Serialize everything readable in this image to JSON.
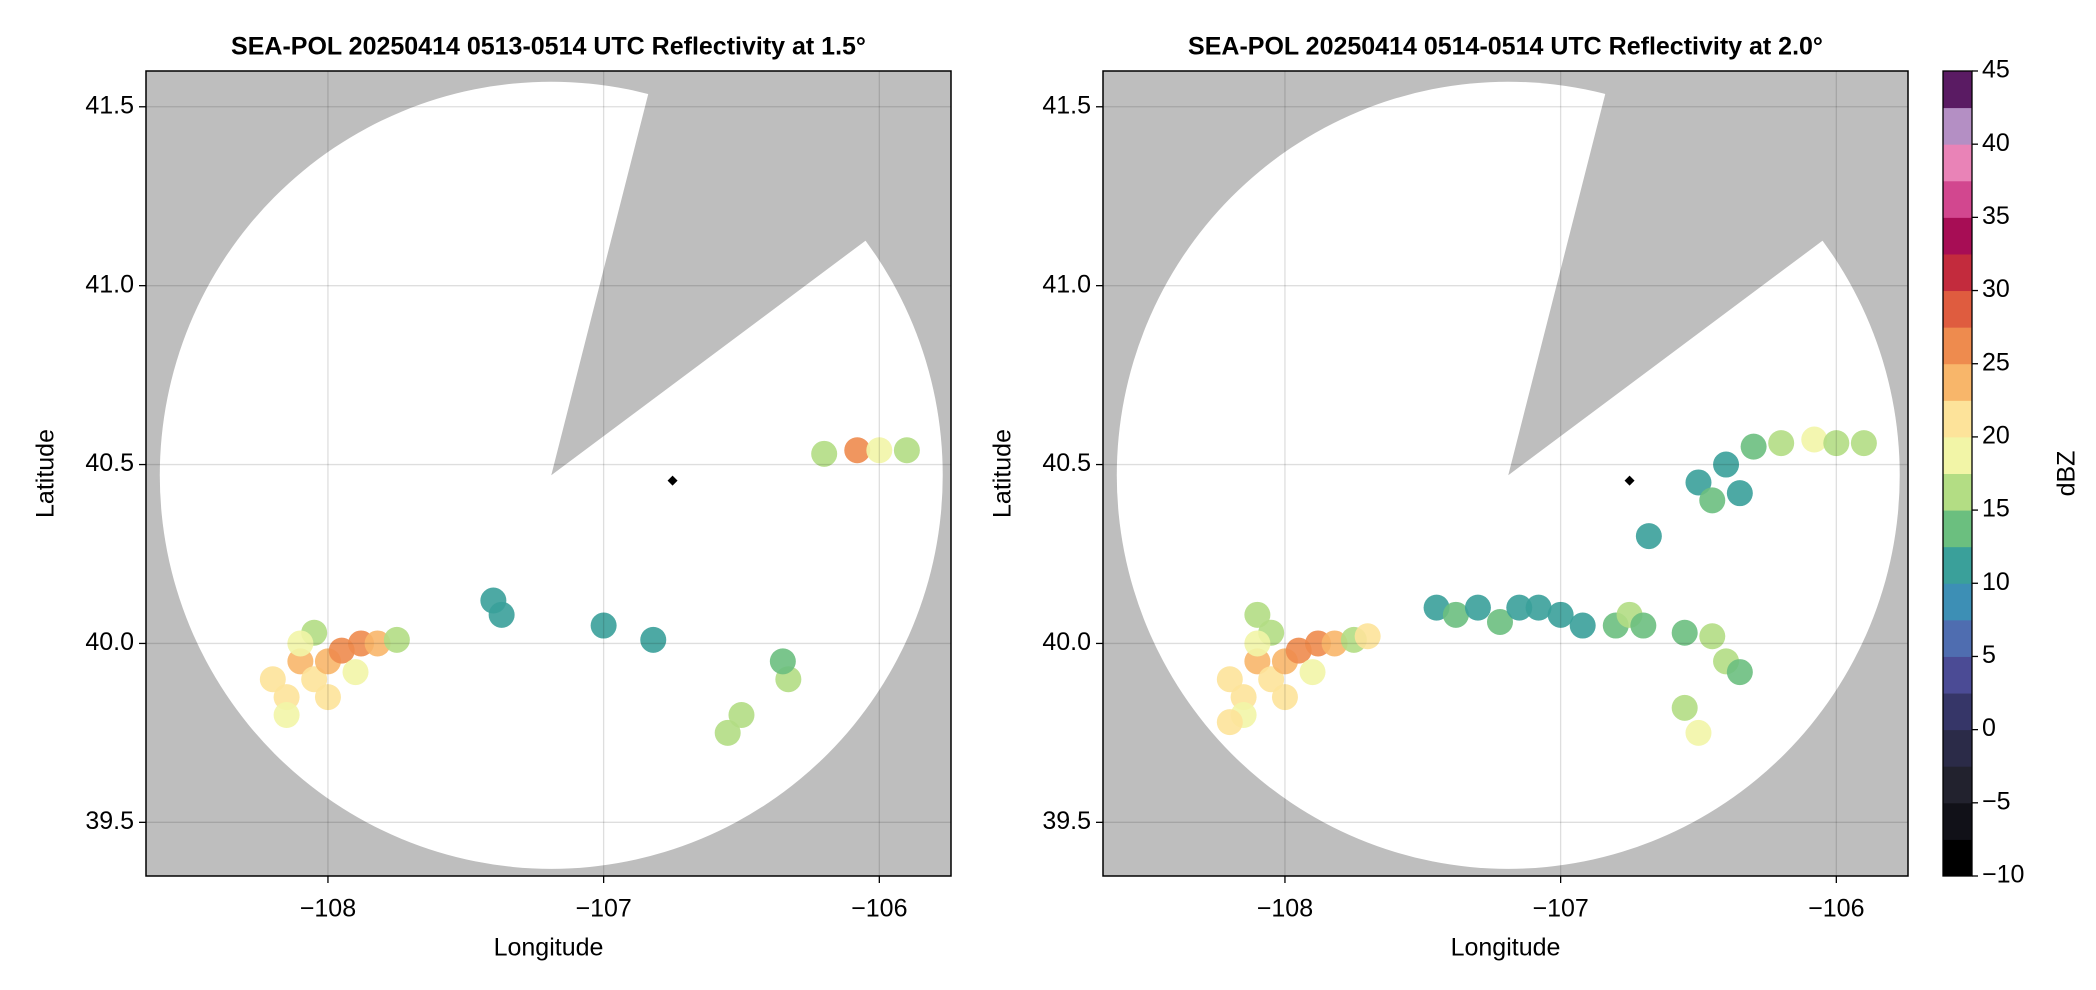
{
  "chart_data": [
    {
      "type": "radar",
      "title": "SEA-POL 20250414 0513-0514 UTC Reflectivity at 1.5°",
      "xlabel": "Longitude",
      "ylabel": "Latitude",
      "xlim": [
        -108.66,
        -105.74
      ],
      "ylim": [
        39.35,
        41.6
      ],
      "xticks": [
        {
          "value": -108,
          "label": "−108"
        },
        {
          "value": -107,
          "label": "−107"
        },
        {
          "value": -106,
          "label": "−106"
        }
      ],
      "yticks": [
        39.5,
        {
          "value": 40,
          "label": "40.0"
        },
        40.5,
        {
          "value": 41,
          "label": "41.0"
        },
        41.5
      ],
      "grid": true,
      "coverage": {
        "center": [
          -107.19,
          40.47
        ],
        "radius": [
          1.42,
          1.1
        ],
        "blocked_edges": [
          [
            -106.84,
            41.53
          ],
          [
            -106.06,
            41.12
          ]
        ]
      },
      "site": [
        -106.75,
        40.455
      ],
      "echoes": {
        "lon": [
          -108.15,
          -108.2,
          -108.1,
          -108.05,
          -108.0,
          -107.95,
          -107.88,
          -107.82,
          -107.75,
          -108.05,
          -108.1,
          -108.0,
          -108.15,
          -107.9,
          -107.4,
          -107.37,
          -107.0,
          -106.82,
          -106.55,
          -106.5,
          -106.33,
          -106.35,
          -106.2,
          -106.08,
          -106.0,
          -105.9
        ],
        "lat": [
          39.85,
          39.9,
          39.95,
          39.9,
          39.95,
          39.98,
          40.0,
          40.0,
          40.01,
          40.03,
          40.0,
          39.85,
          39.8,
          39.92,
          40.12,
          40.08,
          40.05,
          40.01,
          39.75,
          39.8,
          39.9,
          39.95,
          40.53,
          40.54,
          40.54,
          40.54
        ],
        "dbz": [
          22,
          20,
          24,
          22,
          23,
          25,
          27,
          24,
          15,
          15,
          18,
          20,
          19,
          18,
          11,
          12,
          11,
          10,
          17,
          16,
          15,
          13,
          15,
          25,
          18,
          17
        ]
      }
    },
    {
      "type": "radar",
      "title": "SEA-POL 20250414 0514-0514 UTC Reflectivity at 2.0°",
      "xlabel": "Longitude",
      "ylabel": "Latitude",
      "xlim": [
        -108.66,
        -105.74
      ],
      "ylim": [
        39.35,
        41.6
      ],
      "xticks": [
        {
          "value": -108,
          "label": "−108"
        },
        {
          "value": -107,
          "label": "−107"
        },
        {
          "value": -106,
          "label": "−106"
        }
      ],
      "yticks": [
        39.5,
        {
          "value": 40,
          "label": "40.0"
        },
        40.5,
        {
          "value": 41,
          "label": "41.0"
        },
        41.5
      ],
      "grid": true,
      "coverage": {
        "center": [
          -107.19,
          40.47
        ],
        "radius": [
          1.42,
          1.1
        ],
        "blocked_edges": [
          [
            -106.84,
            41.53
          ],
          [
            -106.06,
            41.12
          ]
        ]
      },
      "site": [
        -106.75,
        40.455
      ],
      "echoes": {
        "lon": [
          -108.15,
          -108.2,
          -108.1,
          -108.05,
          -108.0,
          -107.95,
          -107.88,
          -107.82,
          -107.75,
          -108.05,
          -108.1,
          -108.0,
          -108.15,
          -107.9,
          -108.2,
          -107.7,
          -108.1,
          -107.45,
          -107.38,
          -107.3,
          -107.22,
          -107.15,
          -107.08,
          -107.0,
          -106.92,
          -106.8,
          -106.75,
          -106.7,
          -106.55,
          -106.45,
          -106.4,
          -106.35,
          -106.55,
          -106.5,
          -106.5,
          -106.4,
          -106.3,
          -106.2,
          -106.08,
          -106.0,
          -105.9,
          -106.45,
          -106.35,
          -106.68
        ],
        "lat": [
          39.85,
          39.9,
          39.95,
          39.9,
          39.95,
          39.98,
          40.0,
          40.0,
          40.01,
          40.03,
          40.0,
          39.85,
          39.8,
          39.92,
          39.78,
          40.02,
          40.08,
          40.1,
          40.08,
          40.1,
          40.06,
          40.1,
          40.1,
          40.08,
          40.05,
          40.05,
          40.08,
          40.05,
          40.03,
          40.02,
          39.95,
          39.92,
          39.82,
          39.75,
          40.45,
          40.5,
          40.55,
          40.56,
          40.57,
          40.56,
          40.56,
          40.4,
          40.42,
          40.3
        ],
        "dbz": [
          22,
          20,
          24,
          22,
          23,
          25,
          27,
          24,
          15,
          15,
          18,
          20,
          19,
          18,
          22,
          20,
          15,
          12,
          14,
          11,
          13,
          10,
          12,
          11,
          10,
          13,
          17,
          14,
          14,
          15,
          16,
          14,
          15,
          18,
          11,
          12,
          14,
          16,
          19,
          16,
          17,
          13,
          12,
          10
        ]
      }
    }
  ],
  "colorbar": {
    "label": "dBZ",
    "lim": [
      -10,
      45
    ],
    "ticks": [
      {
        "value": -10,
        "label": "−10"
      },
      {
        "value": -5,
        "label": "−5"
      },
      0,
      5,
      10,
      15,
      20,
      25,
      30,
      35,
      40,
      45
    ],
    "colors": [
      "#000000",
      "#111118",
      "#22222e",
      "#2b2b48",
      "#363668",
      "#4b4b95",
      "#4f6db0",
      "#3d8fb5",
      "#3aa09a",
      "#6bbf7f",
      "#b3dd84",
      "#f2f5a7",
      "#fde39a",
      "#f8b66a",
      "#ee8b4e",
      "#df5c3f",
      "#c32b3d",
      "#a70d55",
      "#d2478f",
      "#e983b7",
      "#b48fc4",
      "#5a1b63"
    ]
  }
}
